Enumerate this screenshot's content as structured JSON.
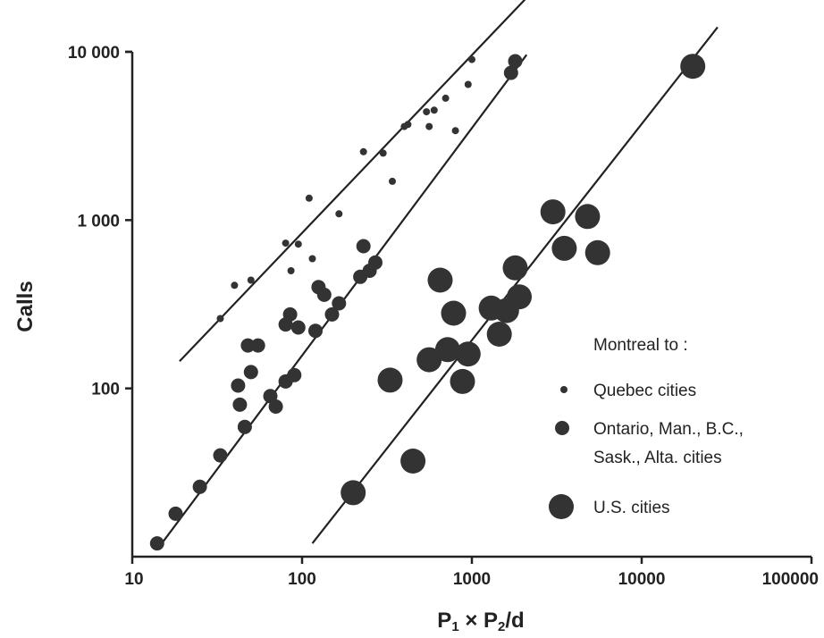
{
  "chart_data": {
    "type": "scatter",
    "title": "",
    "xlabel_parts": [
      "P",
      "1",
      " × P",
      "2",
      "/d"
    ],
    "ylabel": "Calls",
    "x_scale": "log",
    "y_scale": "log",
    "xlim": [
      10,
      100000
    ],
    "ylim": [
      10,
      10000
    ],
    "x_ticks": [
      10,
      100,
      1000,
      10000,
      100000
    ],
    "x_tick_labels": [
      "10",
      "100",
      "1000",
      "10000",
      "100000"
    ],
    "y_ticks": [
      100,
      1000,
      10000
    ],
    "y_tick_labels": [
      "100",
      "1 000",
      "10 000"
    ],
    "grid": false,
    "legend": {
      "position": "lower-right",
      "title": "Montreal to :",
      "entries": [
        "Quebec cities",
        "Ontario, Man., B.C.,",
        "Sask., Alta. cities",
        "U.S. cities"
      ]
    },
    "series": [
      {
        "legend": "Quebec cities",
        "marker": "small",
        "points": [
          [
            33,
            260
          ],
          [
            40,
            410
          ],
          [
            50,
            440
          ],
          [
            80,
            730
          ],
          [
            86,
            500
          ],
          [
            95,
            720
          ],
          [
            110,
            1350
          ],
          [
            115,
            590
          ],
          [
            165,
            1090
          ],
          [
            230,
            2550
          ],
          [
            300,
            2500
          ],
          [
            340,
            1700
          ],
          [
            400,
            3600
          ],
          [
            420,
            3700
          ],
          [
            540,
            4400
          ],
          [
            560,
            3600
          ],
          [
            600,
            4500
          ],
          [
            700,
            5300
          ],
          [
            800,
            3400
          ],
          [
            950,
            6400
          ],
          [
            1000,
            9000
          ]
        ],
        "fit": [
          [
            19,
            145
          ],
          [
            2200,
            22000
          ]
        ]
      },
      {
        "legend": "Ontario, Man., B.C., Sask., Alta. cities",
        "marker": "medium",
        "points": [
          [
            14,
            12
          ],
          [
            18,
            18
          ],
          [
            25,
            26
          ],
          [
            33,
            40
          ],
          [
            42,
            104
          ],
          [
            43,
            80
          ],
          [
            46,
            59
          ],
          [
            48,
            180
          ],
          [
            50,
            125
          ],
          [
            55,
            180
          ],
          [
            65,
            90
          ],
          [
            70,
            78
          ],
          [
            80,
            240
          ],
          [
            85,
            275
          ],
          [
            80,
            110
          ],
          [
            90,
            120
          ],
          [
            95,
            230
          ],
          [
            120,
            220
          ],
          [
            125,
            400
          ],
          [
            135,
            360
          ],
          [
            150,
            275
          ],
          [
            165,
            320
          ],
          [
            220,
            460
          ],
          [
            230,
            700
          ],
          [
            250,
            500
          ],
          [
            270,
            560
          ],
          [
            1700,
            7500
          ],
          [
            1800,
            8800
          ]
        ],
        "fit": [
          [
            14,
            11
          ],
          [
            2100,
            9600
          ]
        ]
      },
      {
        "legend": "U.S. cities",
        "marker": "large",
        "points": [
          [
            200,
            24
          ],
          [
            330,
            112
          ],
          [
            450,
            37
          ],
          [
            560,
            148
          ],
          [
            650,
            440
          ],
          [
            720,
            170
          ],
          [
            780,
            280
          ],
          [
            880,
            110
          ],
          [
            950,
            160
          ],
          [
            1300,
            300
          ],
          [
            1450,
            210
          ],
          [
            1600,
            290
          ],
          [
            1800,
            520
          ],
          [
            1900,
            350
          ],
          [
            3000,
            1120
          ],
          [
            3500,
            680
          ],
          [
            4800,
            1050
          ],
          [
            5500,
            640
          ],
          [
            20000,
            8200
          ]
        ],
        "fit": [
          [
            115,
            12
          ],
          [
            28000,
            14000
          ]
        ]
      }
    ]
  }
}
